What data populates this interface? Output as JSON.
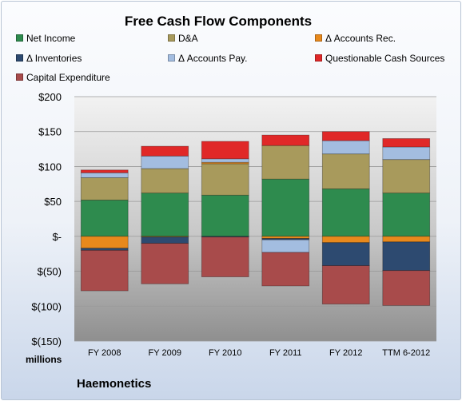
{
  "chart_data": {
    "type": "bar",
    "stacked": true,
    "title": "Free Cash Flow Components",
    "ylabel": "",
    "unit_label": "millions",
    "footer": "Haemonetics",
    "categories": [
      "FY 2008",
      "FY 2009",
      "FY 2010",
      "FY 2011",
      "FY 2012",
      "TTM 6-2012"
    ],
    "ylim": [
      -150,
      200
    ],
    "yticks": [
      200,
      150,
      100,
      50,
      0,
      -50,
      -100,
      -150
    ],
    "ytick_labels": [
      "$200",
      "$150",
      "$100",
      "$50",
      "$-",
      "$(50)",
      "$(100)",
      "$(150)"
    ],
    "grid": true,
    "legend_position": "top",
    "series": [
      {
        "name": "Net Income",
        "color": "#2e8b4e",
        "values": [
          52,
          62,
          59,
          82,
          68,
          62
        ]
      },
      {
        "name": "D&A",
        "color": "#a89a5c",
        "values": [
          32,
          35,
          45,
          48,
          50,
          48
        ]
      },
      {
        "name": "Δ Accounts Rec.",
        "color": "#e8891c",
        "values": [
          -17,
          -1,
          2,
          -3,
          -9,
          -8
        ]
      },
      {
        "name": "Δ Inventories",
        "color": "#2d4a70",
        "values": [
          -3,
          -9,
          -1,
          -2,
          -33,
          -41
        ]
      },
      {
        "name": "Δ Accounts Pay.",
        "color": "#a3bde0",
        "values": [
          7,
          18,
          5,
          -18,
          19,
          18
        ]
      },
      {
        "name": "Questionable Cash Sources",
        "color": "#e02828",
        "values": [
          4,
          14,
          25,
          15,
          13,
          12
        ]
      },
      {
        "name": "Capital Expenditure",
        "color": "#a84b4b",
        "values": [
          -58,
          -58,
          -57,
          -48,
          -55,
          -50
        ]
      }
    ]
  }
}
